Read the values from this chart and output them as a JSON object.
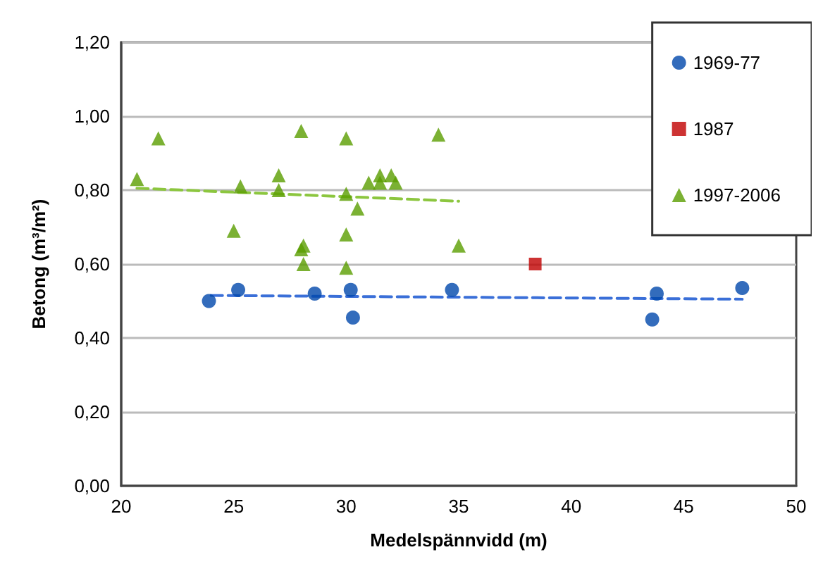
{
  "chart_data": {
    "type": "scatter",
    "xlabel": "Medelspännvidd (m)",
    "ylabel": "Betong (m³/m²)",
    "xlim": [
      20,
      50
    ],
    "xticks": [
      20,
      25,
      30,
      35,
      40,
      45,
      50
    ],
    "ylim": [
      0,
      1.2
    ],
    "yticks": [
      {
        "value": 0,
        "label": "0,00"
      },
      {
        "value": 0.2,
        "label": "0,20"
      },
      {
        "value": 0.4,
        "label": "0,40"
      },
      {
        "value": 0.6,
        "label": "0,60"
      },
      {
        "value": 0.8,
        "label": "0,80"
      },
      {
        "value": 1,
        "label": "1,00"
      },
      {
        "value": 1.2,
        "label": "1,20"
      }
    ],
    "grid": "y",
    "legend": "top right",
    "series": [
      {
        "name": "1969-77",
        "color": "#0047ab",
        "marker": "circle",
        "x": [
          23.9,
          25.2,
          28.6,
          30.2,
          30.3,
          34.7,
          43.6,
          43.8,
          47.6
        ],
        "values": [
          0.5,
          0.53,
          0.52,
          0.53,
          0.455,
          0.53,
          0.45,
          0.52,
          0.535
        ]
      },
      {
        "name": "1987",
        "color": "#c00000",
        "marker": "square",
        "x": [
          38.4
        ],
        "values": [
          0.6
        ]
      },
      {
        "name": "1997-2006",
        "color": "#5a9e00",
        "marker": "triangle",
        "x": [
          20.7,
          21.65,
          25.3,
          25.0,
          27.0,
          27.0,
          28.0,
          28.1,
          28.0,
          28.1,
          30.0,
          30.0,
          30.0,
          30.0,
          30.5,
          31.0,
          31.5,
          31.5,
          32.0,
          32.2,
          34.1,
          35.0
        ],
        "values": [
          0.83,
          0.94,
          0.81,
          0.69,
          0.84,
          0.8,
          0.96,
          0.65,
          0.64,
          0.6,
          0.94,
          0.79,
          0.68,
          0.59,
          0.75,
          0.82,
          0.84,
          0.82,
          0.84,
          0.82,
          0.95,
          0.65
        ]
      },
      {
        "type": "line",
        "color": "#3a6fd8",
        "line_style": "dashed",
        "marker": "none",
        "x": [
          24,
          47.6
        ],
        "values": [
          0.515,
          0.505
        ]
      },
      {
        "type": "line",
        "color": "#8cc63f",
        "line_style": "dashed",
        "marker": "none",
        "x": [
          20.7,
          35
        ],
        "values": [
          0.805,
          0.77
        ]
      }
    ]
  }
}
